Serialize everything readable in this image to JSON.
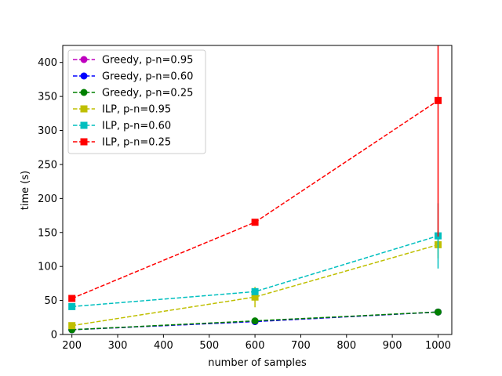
{
  "chart_data": {
    "type": "line",
    "title": "",
    "xlabel": "number of samples",
    "ylabel": "time (s)",
    "xlim": [
      180,
      1030
    ],
    "ylim": [
      0,
      425
    ],
    "xticks": [
      200,
      300,
      400,
      500,
      600,
      700,
      800,
      900,
      1000
    ],
    "yticks": [
      0,
      50,
      100,
      150,
      200,
      250,
      300,
      350,
      400
    ],
    "x": [
      200,
      600,
      1000
    ],
    "grid": false,
    "legend_position": "top-left",
    "series": [
      {
        "name": "Greedy, p-n=0.95",
        "color": "#bf00bf",
        "marker": "circle",
        "linestyle": "dashed",
        "values": [
          7,
          19,
          33
        ],
        "errors": [
          0.5,
          1.0,
          2.0
        ]
      },
      {
        "name": "Greedy, p-n=0.60",
        "color": "#0000ff",
        "marker": "circle",
        "linestyle": "dashed",
        "values": [
          7,
          19,
          33
        ],
        "errors": [
          0.5,
          1.0,
          2.0
        ]
      },
      {
        "name": "Greedy, p-n=0.25",
        "color": "#008000",
        "marker": "circle",
        "linestyle": "dashed",
        "values": [
          7,
          20,
          33
        ],
        "errors": [
          0.5,
          1.0,
          2.0
        ]
      },
      {
        "name": "ILP, p-n=0.95",
        "color": "#bfbf00",
        "marker": "square",
        "linestyle": "dashed",
        "values": [
          13,
          55,
          132
        ],
        "errors": [
          3,
          15,
          20
        ]
      },
      {
        "name": "ILP, p-n=0.60",
        "color": "#00bfbf",
        "marker": "square",
        "linestyle": "dashed",
        "values": [
          41,
          63,
          145
        ],
        "errors": [
          2,
          5,
          48
        ]
      },
      {
        "name": "ILP, p-n=0.25",
        "color": "#ff0000",
        "marker": "square",
        "linestyle": "dashed",
        "values": [
          53,
          165,
          344
        ],
        "errors": [
          2,
          3,
          200
        ]
      }
    ]
  }
}
